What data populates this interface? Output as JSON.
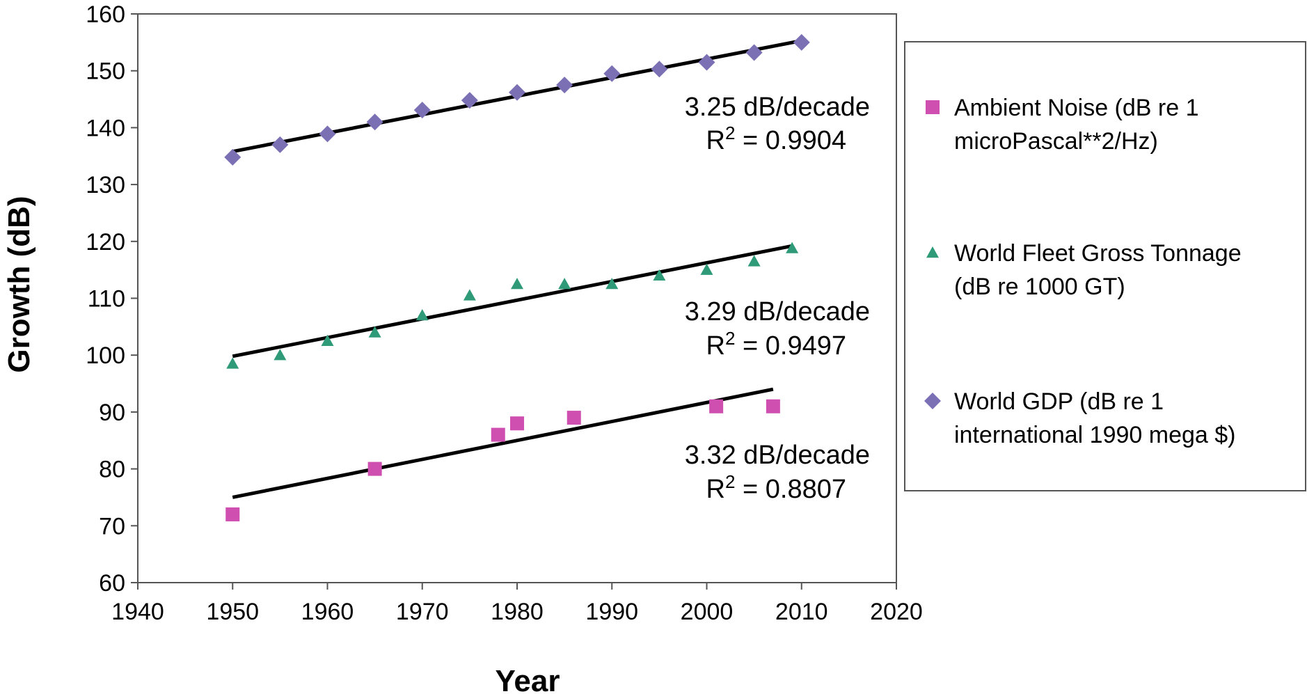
{
  "chart_data": {
    "type": "scatter",
    "title": "",
    "xlabel": "Year",
    "ylabel": "Growth (dB)",
    "xlim": [
      1940,
      2020
    ],
    "ylim": [
      60,
      160
    ],
    "x_ticks": [
      "1940",
      "1950",
      "1960",
      "1970",
      "1980",
      "1990",
      "2000",
      "2010",
      "2020"
    ],
    "y_ticks": [
      "60",
      "70",
      "80",
      "90",
      "100",
      "110",
      "120",
      "130",
      "140",
      "150",
      "160"
    ],
    "grid": false,
    "legend_position": "right",
    "series": [
      {
        "key": "gdp",
        "name": "World GDP (dB re 1 international 1990 mega $)",
        "legend_lines": [
          "World GDP (dB re 1",
          "international 1990 mega $)"
        ],
        "marker": "diamond",
        "color": "#7b70b3",
        "x": [
          1950,
          1955,
          1960,
          1965,
          1970,
          1975,
          1980,
          1985,
          1990,
          1995,
          2000,
          2005,
          2010
        ],
        "y": [
          134.8,
          137,
          138.9,
          141,
          143.1,
          144.8,
          146.2,
          147.5,
          149.5,
          150.3,
          151.5,
          153.2,
          155
        ],
        "trend": {
          "x": [
            1950,
            2010
          ],
          "y": [
            135.8,
            155.3
          ]
        },
        "annotation": {
          "line1": "3.25 dB/decade",
          "r2_prefix": "R",
          "r2_sup": "2",
          "r2_value": " = 0.9904"
        }
      },
      {
        "key": "fleet",
        "name": "World Fleet Gross Tonnage (dB re 1000 GT)",
        "legend_lines": [
          "World Fleet Gross Tonnage",
          "(dB re 1000 GT)"
        ],
        "marker": "triangle",
        "color": "#2e9a78",
        "x": [
          1950,
          1955,
          1960,
          1965,
          1970,
          1975,
          1980,
          1985,
          1990,
          1995,
          2000,
          2005,
          2009
        ],
        "y": [
          98.5,
          100,
          102.5,
          104,
          107,
          110.5,
          112.5,
          112.5,
          112.5,
          114,
          115,
          116.5,
          118.8
        ],
        "trend": {
          "x": [
            1950,
            2009
          ],
          "y": [
            99.8,
            119.2
          ]
        },
        "annotation": {
          "line1": "3.29 dB/decade",
          "r2_prefix": "R",
          "r2_sup": "2",
          "r2_value": " = 0.9497"
        }
      },
      {
        "key": "noise",
        "name": "Ambient Noise (dB re 1 microPascal**2/Hz)",
        "legend_lines": [
          "Ambient Noise (dB re 1",
          "microPascal**2/Hz)"
        ],
        "marker": "square",
        "color": "#cf4fb0",
        "x": [
          1950,
          1965,
          1978,
          1980,
          1986,
          2001,
          2007
        ],
        "y": [
          72,
          80,
          86,
          88,
          89,
          91,
          91
        ],
        "trend": {
          "x": [
            1950,
            2007
          ],
          "y": [
            75,
            94
          ]
        },
        "annotation": {
          "line1": "3.32 dB/decade",
          "r2_prefix": "R",
          "r2_sup": "2",
          "r2_value": " = 0.8807"
        }
      }
    ],
    "legend_order": [
      "noise",
      "fleet",
      "gdp"
    ]
  }
}
